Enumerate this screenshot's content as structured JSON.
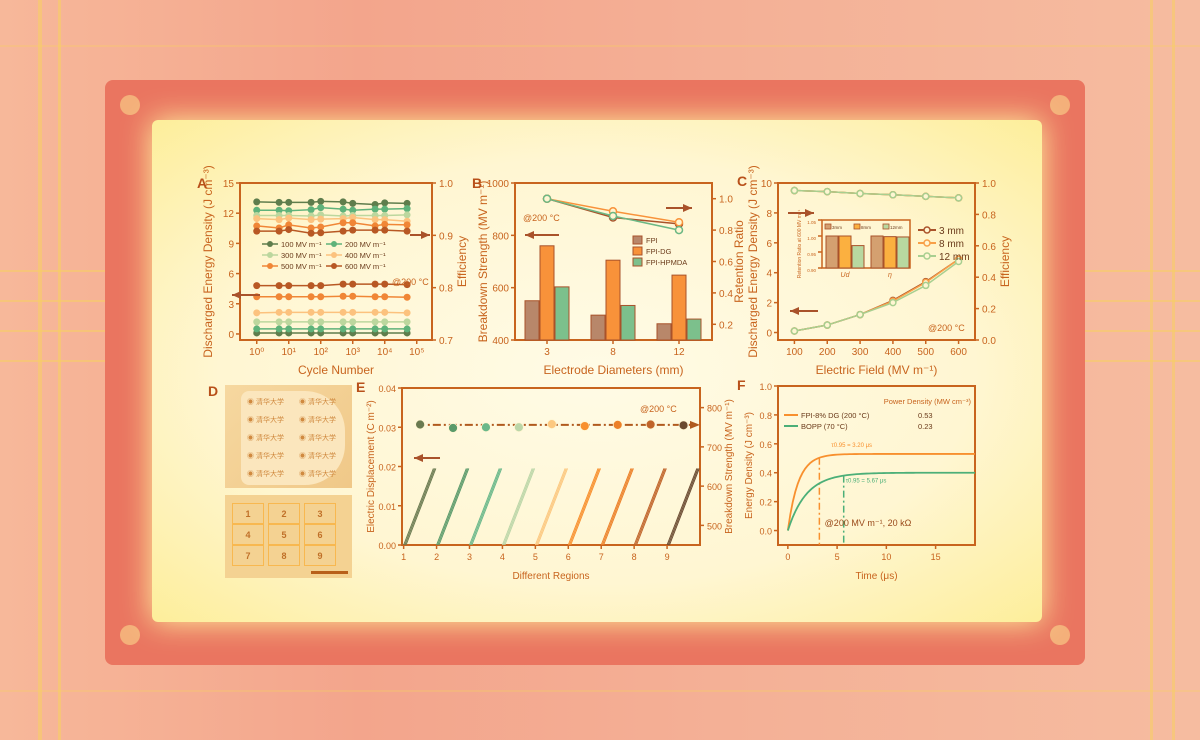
{
  "colors": {
    "axis": "#c8641e",
    "brown": "#a9522a",
    "panel": "#fff6d2"
  },
  "panel_labels": [
    "A",
    "B",
    "C",
    "D",
    "E",
    "F"
  ],
  "photo_d": {
    "grid_numbers": [
      "1",
      "2",
      "3",
      "4",
      "5",
      "6",
      "7",
      "8",
      "9"
    ],
    "logo_text": "清华大学"
  },
  "chart_data": [
    {
      "id": "A",
      "type": "line",
      "xlabel": "Cycle Number",
      "ylabel": "Discharged Energy Density (J cm⁻³)",
      "y2label": "Efficiency",
      "xscale": "log",
      "xlim": [
        0.3,
        300000
      ],
      "ylim": [
        -0.6,
        15
      ],
      "y2lim": [
        0.7,
        1.0
      ],
      "xticks": [
        1,
        10,
        100,
        1000,
        10000,
        100000
      ],
      "xticklabels": [
        "10⁰",
        "10¹",
        "10²",
        "10³",
        "10⁴",
        "10⁵"
      ],
      "yticks": [
        0,
        3,
        6,
        9,
        12,
        15
      ],
      "y2ticks": [
        0.7,
        0.8,
        0.9,
        1.0
      ],
      "y2ticklabels": [
        "0.7",
        "0.8",
        "0.9",
        "1.0"
      ],
      "annotation": "@200 °C",
      "x": [
        1,
        5,
        10,
        50,
        100,
        500,
        1000,
        5000,
        10000,
        50000
      ],
      "series": [
        {
          "name": "100 MV m⁻¹",
          "color": "#5f7d4c",
          "energy": [
            0.1,
            0.1,
            0.1,
            0.1,
            0.1,
            0.1,
            0.1,
            0.1,
            0.1,
            0.1
          ],
          "efficiency": [
            0.964,
            0.963,
            0.963,
            0.963,
            0.965,
            0.964,
            0.961,
            0.959,
            0.962,
            0.961
          ]
        },
        {
          "name": "200 MV m⁻¹",
          "color": "#5fb27a",
          "energy": [
            0.5,
            0.5,
            0.5,
            0.5,
            0.5,
            0.5,
            0.5,
            0.5,
            0.5,
            0.5
          ],
          "efficiency": [
            0.948,
            0.948,
            0.947,
            0.949,
            0.953,
            0.95,
            0.948,
            0.95,
            0.95,
            0.951
          ]
        },
        {
          "name": "300 MV m⁻¹",
          "color": "#bcd79e",
          "energy": [
            1.2,
            1.2,
            1.2,
            1.2,
            1.2,
            1.2,
            1.2,
            1.2,
            1.2,
            1.2
          ],
          "efficiency": [
            0.938,
            0.938,
            0.938,
            0.937,
            0.939,
            0.937,
            0.938,
            0.938,
            0.938,
            0.939
          ]
        },
        {
          "name": "400 MV m⁻¹",
          "color": "#fcc27e",
          "energy": [
            2.1,
            2.15,
            2.15,
            2.15,
            2.15,
            2.15,
            2.15,
            2.15,
            2.15,
            2.1
          ],
          "efficiency": [
            0.932,
            0.93,
            0.933,
            0.93,
            0.931,
            0.932,
            0.934,
            0.93,
            0.93,
            0.927
          ]
        },
        {
          "name": "500 MV m⁻¹",
          "color": "#f08636",
          "energy": [
            3.7,
            3.7,
            3.7,
            3.7,
            3.7,
            3.75,
            3.75,
            3.7,
            3.7,
            3.65
          ],
          "efficiency": [
            0.918,
            0.914,
            0.92,
            0.914,
            0.916,
            0.924,
            0.924,
            0.918,
            0.921,
            0.92
          ]
        },
        {
          "name": "600 MV m⁻¹",
          "color": "#b85824",
          "energy": [
            4.8,
            4.8,
            4.8,
            4.8,
            4.8,
            4.95,
            4.95,
            4.95,
            4.95,
            4.9
          ],
          "efficiency": [
            0.908,
            0.908,
            0.911,
            0.904,
            0.905,
            0.908,
            0.91,
            0.91,
            0.91,
            0.908
          ]
        }
      ]
    },
    {
      "id": "B",
      "type": "bar",
      "xlabel": "Electrode Diameters (mm)",
      "ylabel": "Breakdown Strength (MV m⁻¹)",
      "y2label": "Retention Ratio",
      "categories": [
        "3",
        "8",
        "12"
      ],
      "ylim": [
        400,
        1000
      ],
      "yticks": [
        400,
        600,
        800,
        1000
      ],
      "y2lim": [
        0.1,
        1.1
      ],
      "y2ticks": [
        0.2,
        0.4,
        0.6,
        0.8,
        1.0
      ],
      "y2ticklabels": [
        "0.2",
        "0.4",
        "0.6",
        "0.8",
        "1.0"
      ],
      "annotation": "@200 °C",
      "series": [
        {
          "name": "FPI",
          "color": "#b8876a",
          "line_color": "#a9522a",
          "values": [
            550,
            495,
            462
          ],
          "retention": [
            1.0,
            0.88,
            0.84
          ]
        },
        {
          "name": "FPI-DG",
          "color": "#f8923a",
          "line_color": "#f8923a",
          "values": [
            760,
            705,
            648
          ],
          "retention": [
            1.0,
            0.92,
            0.85
          ]
        },
        {
          "name": "FPI-HPMDA",
          "color": "#7cc08c",
          "line_color": "#6cb884",
          "values": [
            603,
            532,
            480
          ],
          "retention": [
            1.0,
            0.89,
            0.8
          ]
        }
      ]
    },
    {
      "id": "C",
      "type": "line",
      "xlabel": "Electric Field (MV m⁻¹)",
      "ylabel": "Discharged Energy Density (J cm⁻³)",
      "y2label": "Efficiency",
      "x": [
        100,
        200,
        300,
        400,
        500,
        600
      ],
      "xlim": [
        50,
        650
      ],
      "ylim": [
        -0.5,
        10
      ],
      "y2lim": [
        0,
        1
      ],
      "yticks": [
        0,
        2,
        4,
        6,
        8,
        10
      ],
      "y2ticks": [
        0,
        0.2,
        0.4,
        0.6,
        0.8,
        1.0
      ],
      "y2ticklabels": [
        "0.0",
        "0.2",
        "0.4",
        "0.6",
        "0.8",
        "1.0"
      ],
      "annotation": "@200 °C",
      "series": [
        {
          "name": "3 mm",
          "color": "#a9522a",
          "energy": [
            0.1,
            0.5,
            1.2,
            2.15,
            3.4,
            4.9
          ],
          "efficiency": [
            0.952,
            0.945,
            0.933,
            0.925,
            0.915,
            0.905
          ]
        },
        {
          "name": "8 mm",
          "color": "#f8a048",
          "energy": [
            0.1,
            0.5,
            1.2,
            2.1,
            3.35,
            4.9
          ],
          "efficiency": [
            0.952,
            0.945,
            0.933,
            0.925,
            0.915,
            0.905
          ]
        },
        {
          "name": "12 mm",
          "color": "#a8cf90",
          "energy": [
            0.1,
            0.5,
            1.2,
            2.0,
            3.15,
            4.75
          ],
          "efficiency": [
            0.952,
            0.945,
            0.933,
            0.925,
            0.915,
            0.905
          ]
        }
      ],
      "inset": {
        "type": "bar",
        "ylabel": "Retention Ratio at 600 MV m⁻¹",
        "categories": [
          "U_d",
          "η"
        ],
        "ylim": [
          0.9,
          1.05
        ],
        "yticks": [
          "0.90",
          "0.95",
          "1.00",
          "1.05"
        ],
        "series": [
          {
            "name": "3mm",
            "color": "#d4a070",
            "values": [
              1.0,
              1.0
            ]
          },
          {
            "name": "8mm",
            "color": "#fbb040",
            "values": [
              1.0,
              0.998
            ]
          },
          {
            "name": "12mm",
            "color": "#b8d8a0",
            "values": [
              0.97,
              0.997
            ]
          }
        ]
      }
    },
    {
      "id": "E",
      "type": "line",
      "xlabel": "Different Regions",
      "ylabel": "Electric Displacement (C m⁻²)",
      "y2label": "Breakdown Strength (MV m⁻¹)",
      "xlim": [
        0.95,
        10
      ],
      "ylim": [
        0,
        0.04
      ],
      "y2lim": [
        450,
        850
      ],
      "xticks": [
        1,
        2,
        3,
        4,
        5,
        6,
        7,
        8,
        9
      ],
      "yticks": [
        "0.00",
        "0.01",
        "0.02",
        "0.03",
        "0.04"
      ],
      "y2ticks": [
        500,
        600,
        700,
        800
      ],
      "annotation": "@200 °C",
      "regions": [
        {
          "region": 1,
          "color": "#6a7a50",
          "breakdown": 757
        },
        {
          "region": 2,
          "color": "#5a9a6a",
          "breakdown": 748
        },
        {
          "region": 3,
          "color": "#6ab88a",
          "breakdown": 750
        },
        {
          "region": 4,
          "color": "#bcd6a8",
          "breakdown": 750
        },
        {
          "region": 5,
          "color": "#fcc880",
          "breakdown": 758
        },
        {
          "region": 6,
          "color": "#f8902e",
          "breakdown": 753
        },
        {
          "region": 7,
          "color": "#ec8028",
          "breakdown": 756
        },
        {
          "region": 8,
          "color": "#c0642a",
          "breakdown": 757
        },
        {
          "region": 9,
          "color": "#6a4a30",
          "breakdown": 755
        }
      ],
      "max_displacement": 0.0195
    },
    {
      "id": "F",
      "type": "line",
      "xlabel": "Time (μs)",
      "ylabel": "Energy Density (J cm⁻³)",
      "xlim": [
        -1,
        19
      ],
      "ylim": [
        -0.1,
        1.0
      ],
      "xticks": [
        0,
        5,
        10,
        15
      ],
      "yticks": [
        "0.0",
        "0.2",
        "0.4",
        "0.6",
        "0.8",
        "1.0"
      ],
      "annotation": "@200 MV m⁻¹, 20 kΩ",
      "table_header": "Power Density (MW cm⁻³)",
      "series": [
        {
          "name": "FPI-8% DG (200 °C)",
          "color": "#f8902e",
          "plateau": 0.53,
          "t095": 3.2,
          "t095_label": "τ0.95 = 3.20 μs",
          "power_density": "0.53"
        },
        {
          "name": "BOPP (70 °C)",
          "color": "#4caf78",
          "plateau": 0.4,
          "t095": 5.67,
          "t095_label": "τ0.95 = 5.67 μs",
          "power_density": "0.23"
        }
      ]
    }
  ]
}
